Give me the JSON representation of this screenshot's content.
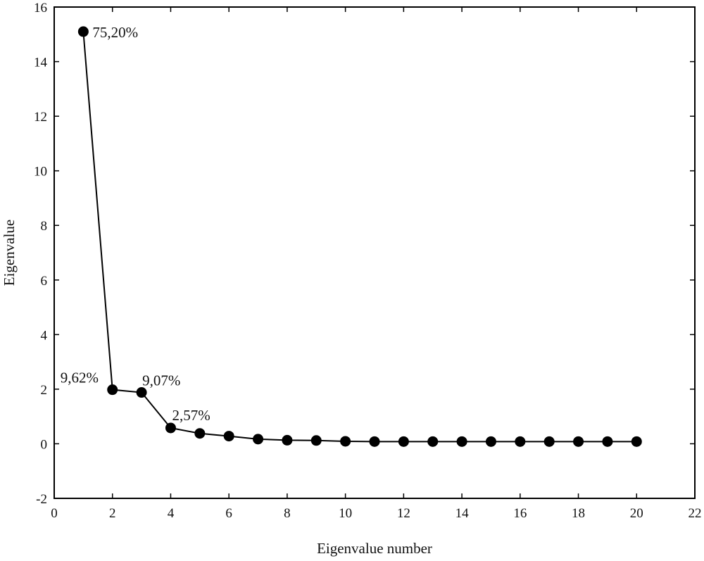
{
  "chart_data": {
    "type": "line",
    "title": "",
    "xlabel": "Eigenvalue number",
    "ylabel": "Eigenvalue",
    "xlim": [
      0,
      22
    ],
    "ylim": [
      -2,
      16
    ],
    "x_ticks": [
      "0",
      "2",
      "4",
      "6",
      "8",
      "10",
      "12",
      "14",
      "16",
      "18",
      "20",
      "22"
    ],
    "y_ticks": [
      "-2",
      "0",
      "2",
      "4",
      "6",
      "8",
      "10",
      "12",
      "14",
      "16"
    ],
    "grid": false,
    "legend": "none",
    "series": [
      {
        "x": [
          1,
          2,
          3,
          4,
          5,
          6,
          7,
          8,
          9,
          10,
          11,
          12,
          13,
          14,
          15,
          16,
          17,
          18,
          19,
          20
        ],
        "y": [
          15.1,
          1.98,
          1.88,
          0.58,
          0.38,
          0.28,
          0.17,
          0.13,
          0.12,
          0.09,
          0.08,
          0.08,
          0.08,
          0.08,
          0.08,
          0.08,
          0.08,
          0.08,
          0.08,
          0.08
        ]
      }
    ],
    "annotations": [
      {
        "text": "75,20%",
        "x": 1,
        "y": 15.1
      },
      {
        "text": "9,62%",
        "x": 2,
        "y": 1.98
      },
      {
        "text": "9,07%",
        "x": 3,
        "y": 1.88
      },
      {
        "text": "2,57%",
        "x": 4,
        "y": 0.58
      }
    ],
    "colors": {
      "line": "#000000",
      "marker": "#000000",
      "axis": "#000000"
    }
  }
}
